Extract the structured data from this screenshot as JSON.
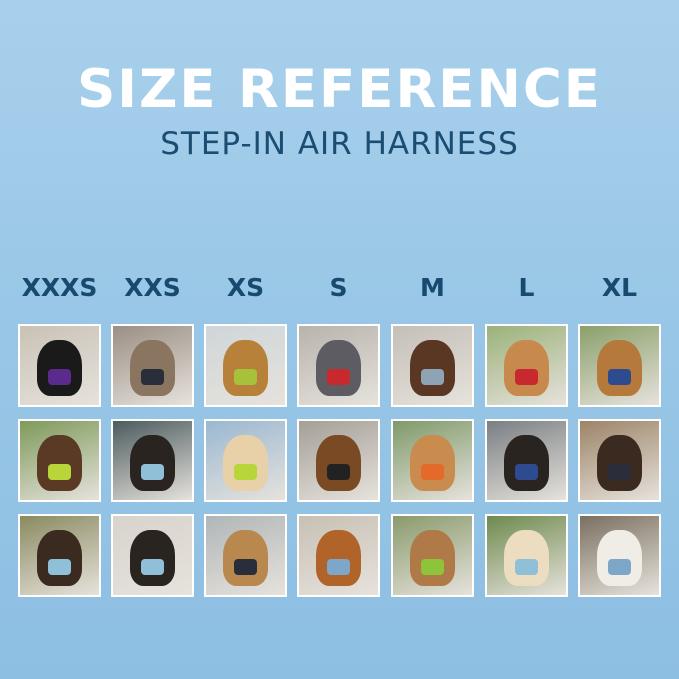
{
  "title": "SIZE REFERENCE",
  "subtitle": "STEP-IN AIR HARNESS",
  "sizes": [
    "XXXS",
    "XXS",
    "XS",
    "S",
    "M",
    "L",
    "XL"
  ],
  "tiles": [
    [
      {
        "bg": "#c9c2b6",
        "pet": "#1a1a1a",
        "harness": "#5a2a8c"
      },
      {
        "bg": "#9a8f84",
        "pet": "#8a7560",
        "harness": "#2a2d3a"
      },
      {
        "bg": "#cfd6d9",
        "pet": "#b8813a",
        "harness": "#a7c23a"
      },
      {
        "bg": "#b8b4ac",
        "pet": "#5c5c62",
        "harness": "#c7292e"
      },
      {
        "bg": "#c4c0b8",
        "pet": "#5a3722",
        "harness": "#8ea3b4"
      },
      {
        "bg": "#9bb27a",
        "pet": "#c88a4c",
        "harness": "#c7292e"
      },
      {
        "bg": "#8aa06a",
        "pet": "#b5793c",
        "harness": "#2d4b8e"
      }
    ],
    [
      {
        "bg": "#7e9a5a",
        "pet": "#5a3a24",
        "harness": "#b8d63a"
      },
      {
        "bg": "#4b5b5e",
        "pet": "#2a2420",
        "harness": "#8fc0d8"
      },
      {
        "bg": "#9ab8d2",
        "pet": "#e8d0a8",
        "harness": "#b8d63a"
      },
      {
        "bg": "#a4a098",
        "pet": "#7a4a24",
        "harness": "#222"
      },
      {
        "bg": "#7f9a6a",
        "pet": "#c98c4e",
        "harness": "#e36a2a"
      },
      {
        "bg": "#7a7f84",
        "pet": "#2a2420",
        "harness": "#2d4b8e"
      },
      {
        "bg": "#9c8468",
        "pet": "#3a2a20",
        "harness": "#2a2d3a"
      }
    ],
    [
      {
        "bg": "#8a8a60",
        "pet": "#3a2a20",
        "harness": "#8fc0d8"
      },
      {
        "bg": "#d8d4cc",
        "pet": "#2a2420",
        "harness": "#8fc0d8"
      },
      {
        "bg": "#b0b6b8",
        "pet": "#b8884e",
        "harness": "#2a2d3a"
      },
      {
        "bg": "#c8c0b4",
        "pet": "#b0642a",
        "harness": "#7ea6c8"
      },
      {
        "bg": "#8a9a6c",
        "pet": "#b07a48",
        "harness": "#8ec43a"
      },
      {
        "bg": "#6e8a4e",
        "pet": "#ecdcc0",
        "harness": "#8fc0d8"
      },
      {
        "bg": "#7a7060",
        "pet": "#f0ece6",
        "harness": "#7ea6c8"
      }
    ]
  ]
}
